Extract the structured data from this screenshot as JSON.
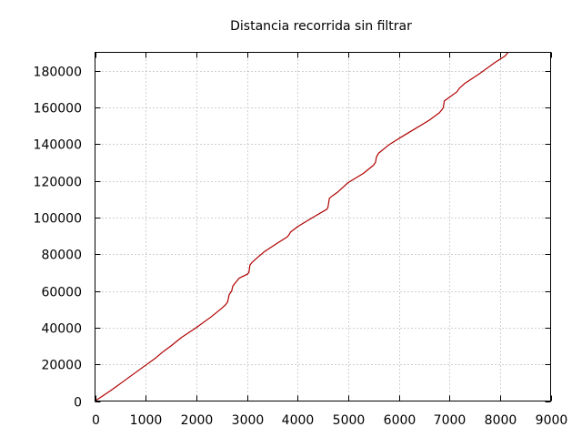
{
  "chart_data": {
    "type": "line",
    "title": "Distancia recorrida sin filtrar",
    "xlabel": "",
    "ylabel": "",
    "xlim": [
      0,
      9000
    ],
    "ylim": [
      0,
      190000
    ],
    "x_ticks": [
      0,
      1000,
      2000,
      3000,
      4000,
      5000,
      6000,
      7000,
      8000,
      9000
    ],
    "y_ticks": [
      0,
      20000,
      40000,
      60000,
      80000,
      100000,
      120000,
      140000,
      160000,
      180000
    ],
    "grid": true,
    "legend": "none",
    "series": [
      {
        "color": "#b00000",
        "x": [
          0,
          300,
          600,
          900,
          1200,
          1350,
          1500,
          1700,
          2000,
          2300,
          2500,
          2580,
          2620,
          2650,
          2700,
          2720,
          2760,
          2850,
          3000,
          3040,
          3060,
          3100,
          3200,
          3350,
          3600,
          3800,
          3840,
          3860,
          4000,
          4300,
          4580,
          4600,
          4630,
          4700,
          4800,
          5000,
          5300,
          5500,
          5540,
          5560,
          5600,
          5800,
          6000,
          6300,
          6600,
          6800,
          6860,
          6880,
          6900,
          7000,
          7150,
          7200,
          7300,
          7600,
          7900,
          8100,
          8160
        ],
        "y": [
          0,
          5500,
          11500,
          17500,
          23500,
          27000,
          30000,
          34500,
          40000,
          46000,
          50500,
          52500,
          54000,
          58000,
          60000,
          62500,
          64000,
          67000,
          69000,
          70000,
          74000,
          75500,
          78000,
          81500,
          86000,
          89500,
          91000,
          92000,
          95000,
          100000,
          104500,
          105500,
          110500,
          112000,
          114000,
          119000,
          124000,
          128500,
          130000,
          133000,
          135000,
          139500,
          143000,
          148000,
          153000,
          157000,
          159000,
          160000,
          163500,
          165500,
          168500,
          170500,
          173000,
          178500,
          184500,
          188000,
          190000
        ]
      }
    ]
  }
}
